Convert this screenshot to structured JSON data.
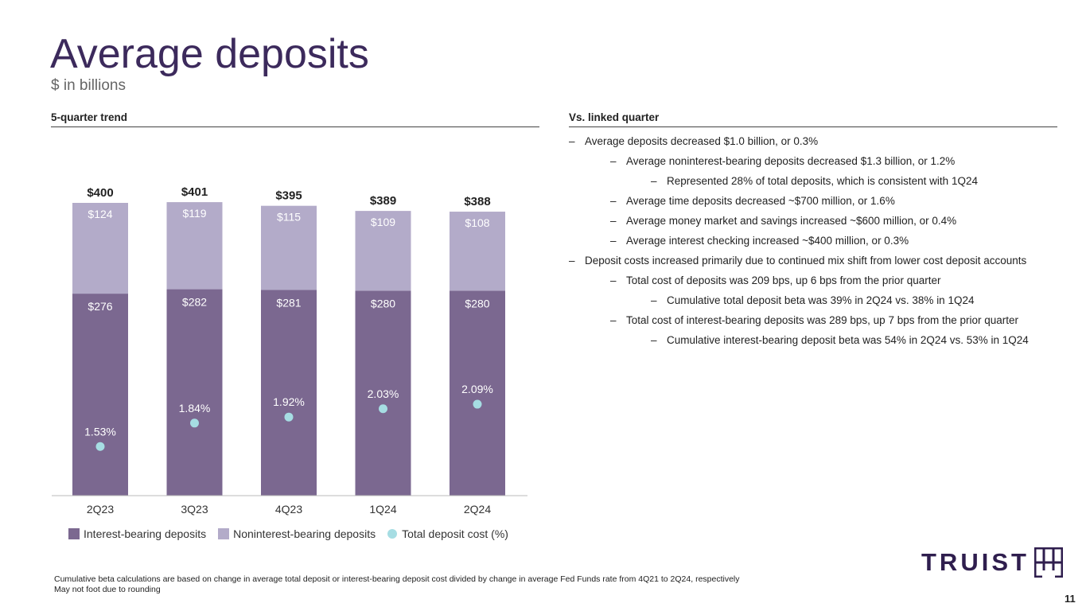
{
  "header": {
    "title": "Average deposits",
    "subtitle": "$ in billions"
  },
  "left_section": {
    "heading": "5-quarter trend"
  },
  "right_section": {
    "heading": "Vs. linked quarter"
  },
  "colors": {
    "title": "#3c2a5c",
    "interest_bearing": "#7b6890",
    "noninterest_bearing": "#b3abc9",
    "deposit_cost": "#a6dde3"
  },
  "chart_data": {
    "type": "bar",
    "stacked": true,
    "categories": [
      "2Q23",
      "3Q23",
      "4Q23",
      "1Q24",
      "2Q24"
    ],
    "series": [
      {
        "name": "Interest-bearing deposits",
        "values": [
          276,
          282,
          281,
          280,
          280
        ]
      },
      {
        "name": "Noninterest-bearing deposits",
        "values": [
          124,
          119,
          115,
          109,
          108
        ]
      }
    ],
    "totals": [
      400,
      401,
      395,
      389,
      388
    ],
    "value_labels": {
      "interest_bearing": [
        "$276",
        "$282",
        "$281",
        "$280",
        "$280"
      ],
      "noninterest_bearing": [
        "$124",
        "$119",
        "$115",
        "$109",
        "$108"
      ],
      "totals": [
        "$400",
        "$401",
        "$395",
        "$389",
        "$388"
      ]
    },
    "line_series": {
      "name": "Total deposit cost (%)",
      "type": "scatter",
      "values": [
        1.53,
        1.84,
        1.92,
        2.03,
        2.09
      ],
      "labels": [
        "1.53%",
        "1.84%",
        "1.92%",
        "2.03%",
        "2.09%"
      ]
    },
    "legend": [
      "Interest-bearing deposits",
      "Noninterest-bearing deposits",
      "Total deposit cost (%)"
    ],
    "legend_position": "bottom"
  },
  "bullets": [
    {
      "level": 1,
      "text": "Average deposits decreased $1.0 billion, or 0.3%"
    },
    {
      "level": 2,
      "text": "Average noninterest-bearing deposits decreased $1.3 billion, or 1.2%"
    },
    {
      "level": 3,
      "text": "Represented 28% of total deposits, which is consistent with 1Q24"
    },
    {
      "level": 2,
      "text": "Average time deposits decreased ~$700 million, or 1.6%"
    },
    {
      "level": 2,
      "text": "Average money market and savings increased ~$600 million, or 0.4%"
    },
    {
      "level": 2,
      "text": "Average interest checking increased ~$400 million, or 0.3%"
    },
    {
      "level": 1,
      "text": "Deposit costs increased primarily due to continued mix shift from lower cost deposit accounts"
    },
    {
      "level": 2,
      "text": "Total cost of deposits was 209 bps, up 6 bps from the prior quarter"
    },
    {
      "level": 3,
      "text": "Cumulative total deposit beta was 39% in 2Q24 vs. 38% in 1Q24"
    },
    {
      "level": 2,
      "text": "Total cost of interest-bearing deposits was 289 bps, up 7 bps from the prior quarter"
    },
    {
      "level": 3,
      "text": "Cumulative interest-bearing deposit beta was 54% in 2Q24 vs. 53% in 1Q24"
    }
  ],
  "bullet_dash": "–",
  "footnotes": {
    "line1": "Cumulative beta calculations are based on change in average total deposit or interest-bearing deposit cost divided by change in average Fed Funds rate from 4Q21 to 2Q24, respectively",
    "line2": "May not foot due to rounding"
  },
  "logo": {
    "text": "TRUIST",
    "icon": "truist-mark-icon"
  },
  "page_number": "11"
}
